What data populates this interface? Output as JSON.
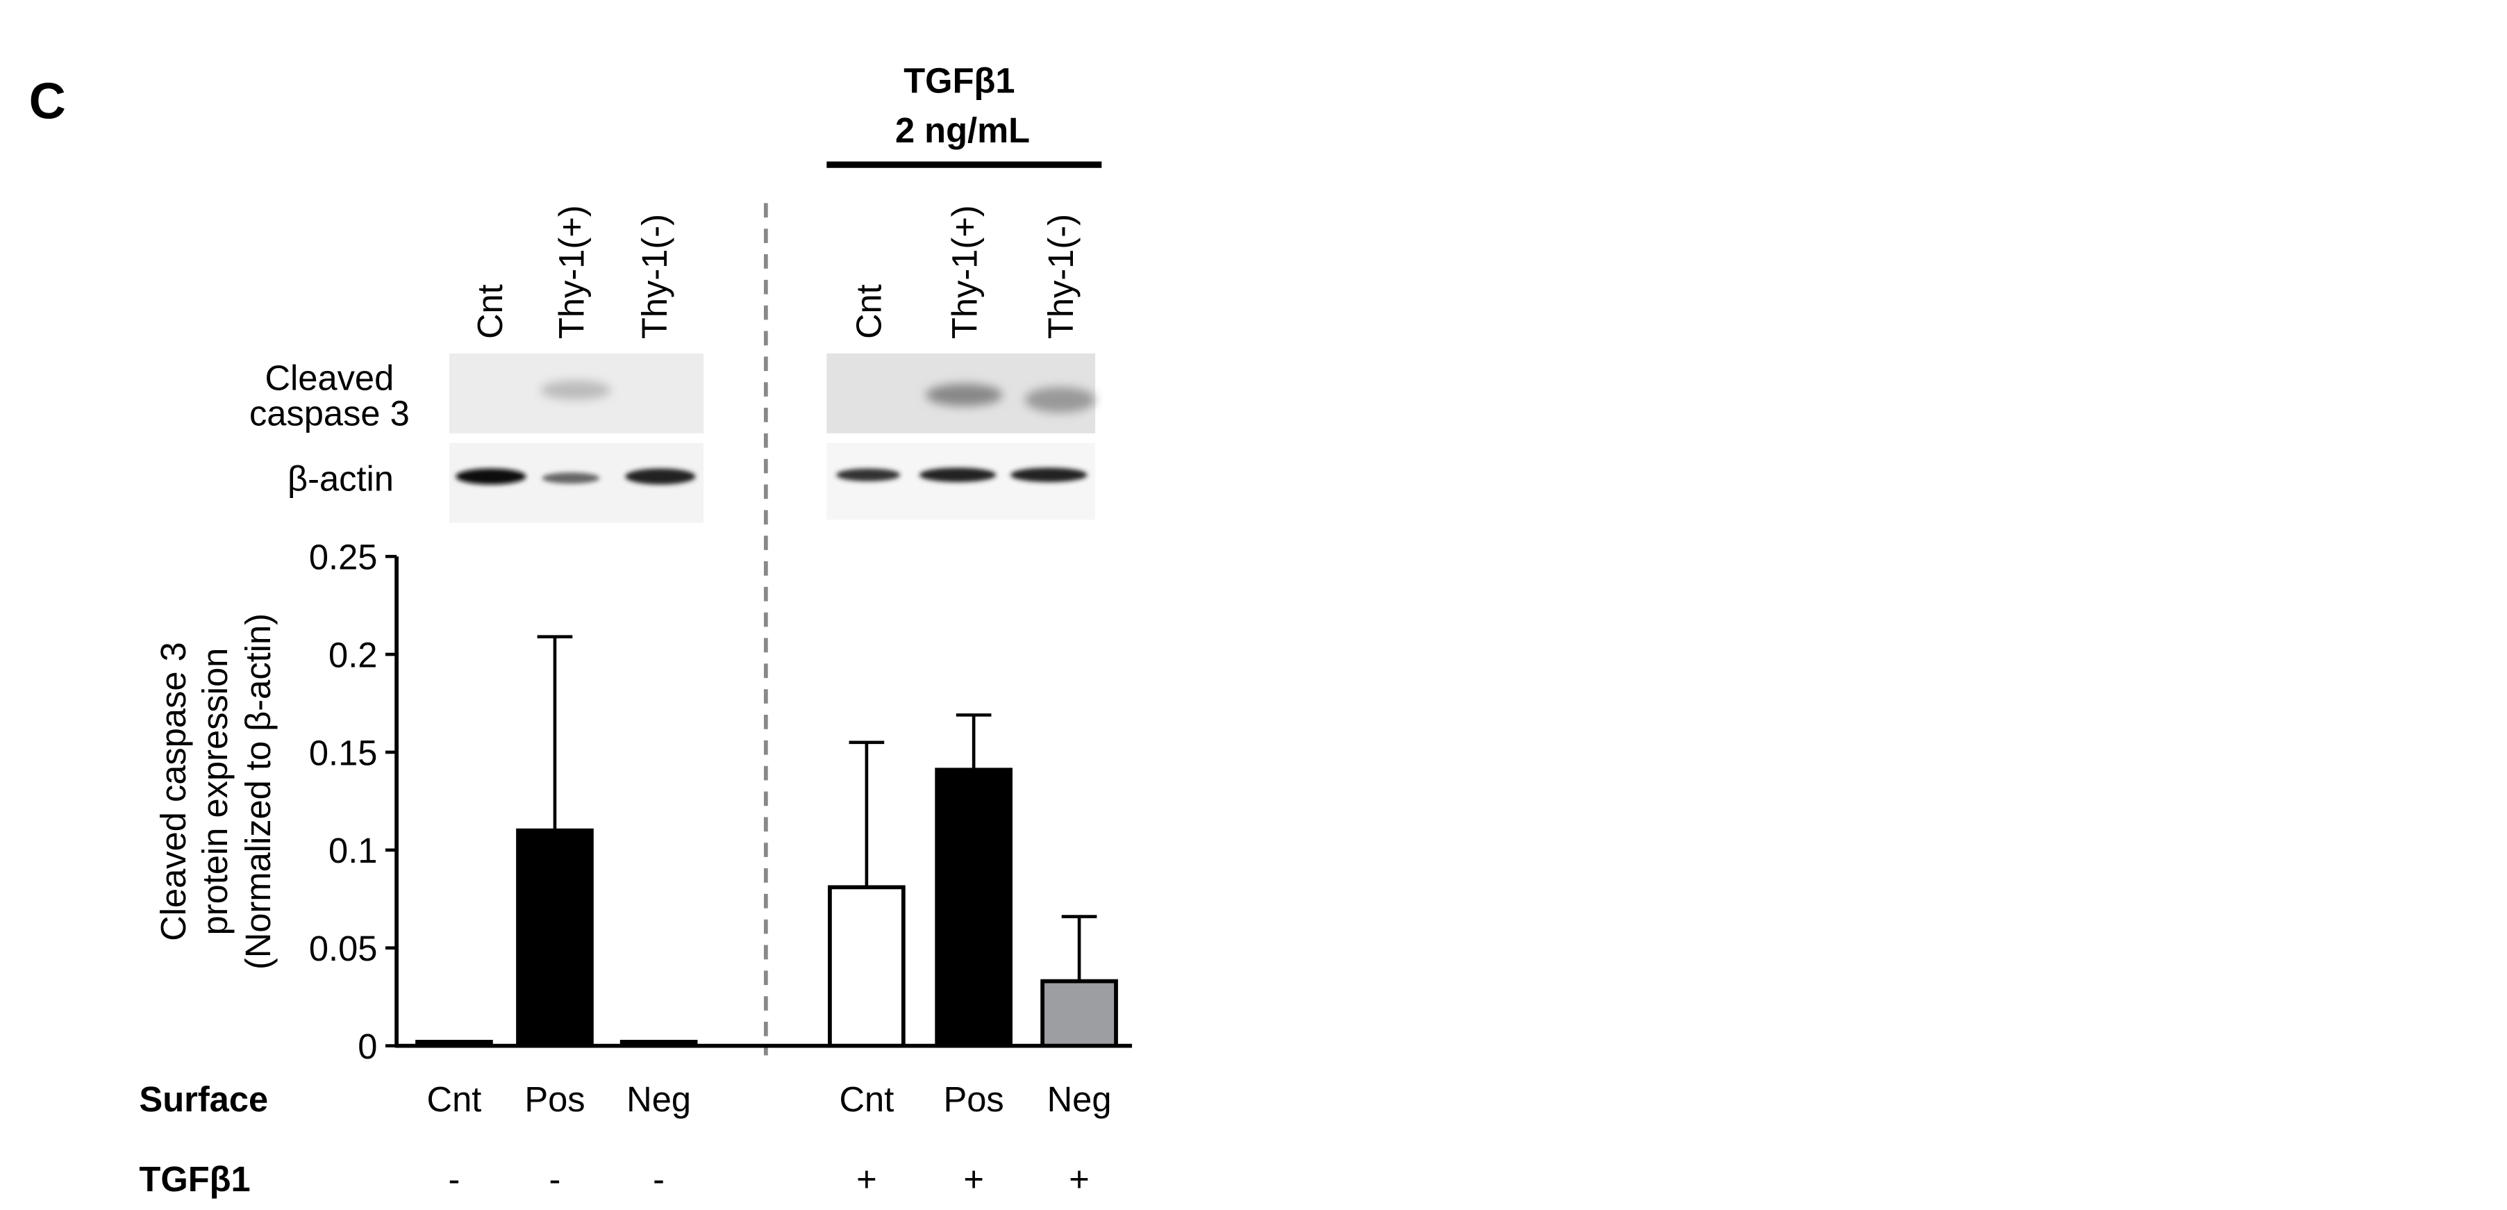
{
  "chart_data": {
    "type": "bar",
    "panel_label": "C",
    "treatment_header": [
      "TGFβ1",
      "2 ng/mL"
    ],
    "lanes": [
      "Cnt",
      "Thy-1(+)",
      "Thy-1(-)",
      "Cnt",
      "Thy-1(+)",
      "Thy-1(-)"
    ],
    "blot_labels": {
      "cleaved": [
        "Cleaved",
        "caspase 3"
      ],
      "actin": "β-actin"
    },
    "ylabel_lines": [
      "Cleaved caspase 3",
      "protein expression",
      "(Normalized to β-actin)"
    ],
    "categories": [
      "Cnt",
      "Pos",
      "Neg",
      "Cnt",
      "Pos",
      "Neg"
    ],
    "values": [
      0.002,
      0.11,
      0.002,
      0.081,
      0.141,
      0.033
    ],
    "errors": [
      null,
      0.099,
      null,
      0.074,
      0.028,
      0.033
    ],
    "colors": [
      "#000000",
      "#000000",
      "#000000",
      "#ffffff",
      "#000000",
      "#9d9ea2"
    ],
    "row_labels": [
      "Surface",
      "TGFβ1"
    ],
    "treatment_signs": [
      "-",
      "-",
      "-",
      "+",
      "+",
      "+"
    ],
    "ylim": [
      0,
      0.25
    ],
    "yticks": [
      0,
      0.05,
      0.1,
      0.15,
      0.2,
      0.25
    ]
  }
}
